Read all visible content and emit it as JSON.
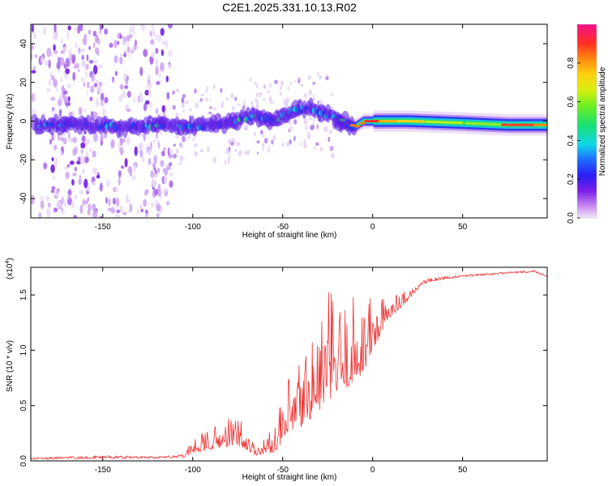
{
  "chart_data": [
    {
      "type": "heatmap",
      "title": "C2E1.2025.331.10.13.R02",
      "xlabel": "Height of straight line (km)",
      "ylabel": "Frequency (Hz)",
      "xlim": [
        -190,
        97
      ],
      "ylim": [
        -50,
        50
      ],
      "xticks": [
        -150,
        -100,
        -50,
        0,
        50
      ],
      "yticks": [
        -40,
        -20,
        0,
        20,
        40
      ],
      "colorbar": {
        "label": "Normalized spectral amplitude",
        "range": [
          0,
          1
        ],
        "ticks": [
          0.0,
          0.2,
          0.4,
          0.6,
          0.8
        ]
      },
      "ridge": {
        "x": [
          -185,
          -160,
          -140,
          -120,
          -100,
          -80,
          -65,
          -55,
          -45,
          -35,
          -28,
          -22,
          -15,
          -10,
          -5,
          0,
          20,
          50,
          75,
          95
        ],
        "freq": [
          -2,
          -2,
          -3,
          -2,
          -3,
          -1,
          3,
          0,
          5,
          7,
          4,
          2,
          -1,
          -3,
          0,
          0,
          0,
          -1,
          -2,
          -2
        ]
      }
    },
    {
      "type": "line",
      "xlabel": "Height of straight line (km)",
      "ylabel": "SNR (10 * v/v)",
      "y_multiplier_label": "(x10",
      "y_multiplier_exponent": "4",
      "y_multiplier_suffix": ")",
      "xlim": [
        -190,
        97
      ],
      "ylim": [
        0,
        1.75
      ],
      "xticks": [
        -150,
        -100,
        -50,
        0,
        50
      ],
      "yticks": [
        0.0,
        0.5,
        1.0,
        1.5
      ],
      "color": "#ee3333",
      "envelope": {
        "x": [
          -190,
          -150,
          -120,
          -105,
          -100,
          -85,
          -75,
          -65,
          -55,
          -48,
          -40,
          -30,
          -25,
          -15,
          -5,
          0,
          10,
          20,
          30,
          50,
          70,
          90,
          97
        ],
        "base": [
          0.01,
          0.02,
          0.02,
          0.03,
          0.07,
          0.12,
          0.14,
          0.05,
          0.08,
          0.18,
          0.3,
          0.45,
          0.55,
          0.65,
          0.8,
          1.0,
          1.3,
          1.45,
          1.58,
          1.65,
          1.67,
          1.69,
          1.65
        ],
        "peak": [
          0.03,
          0.05,
          0.04,
          0.06,
          0.2,
          0.35,
          0.45,
          0.15,
          0.3,
          0.7,
          1.0,
          1.35,
          1.58,
          1.45,
          1.6,
          1.5,
          1.5,
          1.55,
          1.66,
          1.69,
          1.71,
          1.73,
          1.68
        ]
      }
    }
  ]
}
